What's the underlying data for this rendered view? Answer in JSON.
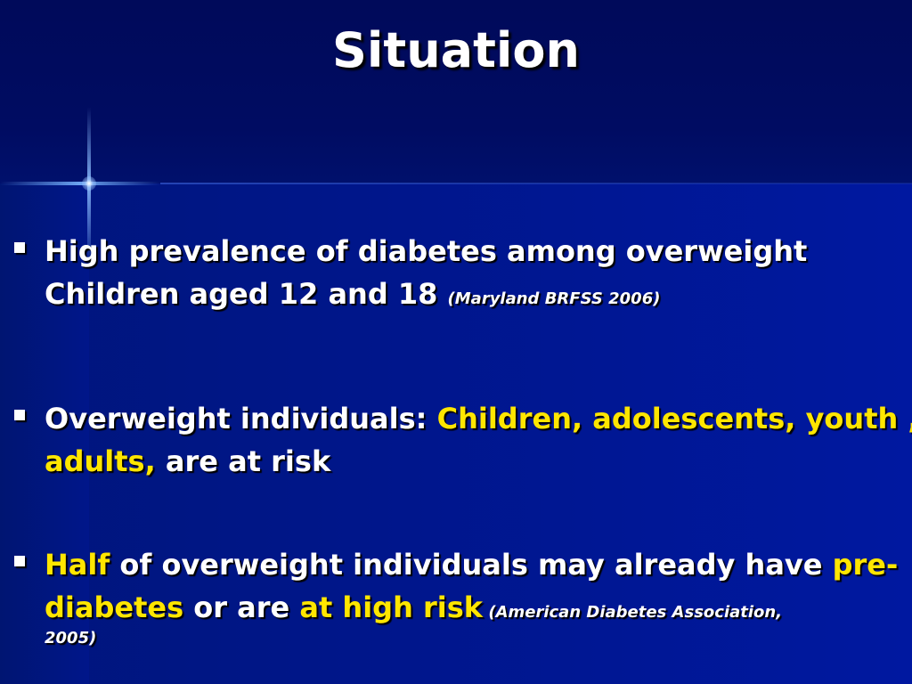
{
  "slide": {
    "title": "Situation",
    "bullets": [
      {
        "text_1": "High prevalence of diabetes among overweight Children aged 12 and 18 ",
        "citation": "(Maryland BRFSS 2006)"
      },
      {
        "text_1": "Overweight individuals: ",
        "highlight_1": "Children, adolescents, youth , adults,",
        "text_2": " are at risk"
      },
      {
        "highlight_1": "Half",
        "text_1": " of overweight individuals may already have ",
        "highlight_2": "pre-diabetes",
        "text_2": " or are ",
        "highlight_3": "at high risk",
        "citation_1": " (American Diabetes Association,",
        "citation_2": "2005)"
      }
    ]
  },
  "colors": {
    "background": "#000e6a",
    "text": "#ffffff",
    "highlight": "#ffe600"
  }
}
